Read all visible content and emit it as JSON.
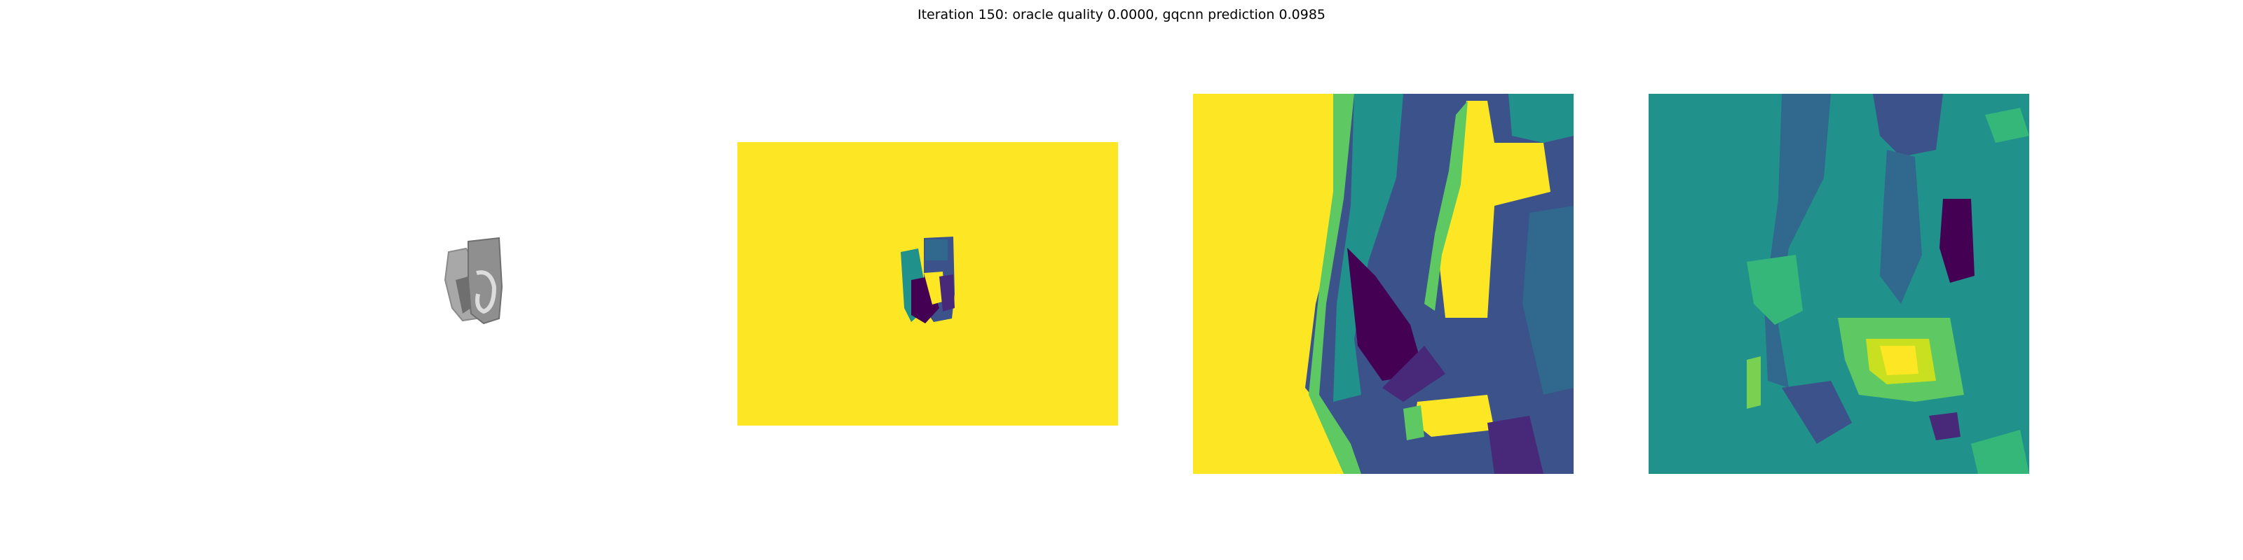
{
  "figure": {
    "title": "Iteration 150: oracle quality 0.0000, gqcnn prediction 0.0985"
  },
  "panels": [
    {
      "name": "rendered-object-view",
      "colors": [
        "#a8a8a8",
        "#7d7d7d",
        "#cfcfcf"
      ]
    },
    {
      "name": "depth-image",
      "colors": [
        "#fde725",
        "#440154",
        "#3b528b",
        "#21918c",
        "#5ec962"
      ]
    },
    {
      "name": "depth-crop",
      "colors": [
        "#fde725",
        "#440154",
        "#3b528b",
        "#21918c",
        "#5ec962"
      ]
    },
    {
      "name": "normalized-crop",
      "colors": [
        "#21918c",
        "#440154",
        "#3b528b",
        "#5ec962",
        "#fde725"
      ]
    }
  ]
}
